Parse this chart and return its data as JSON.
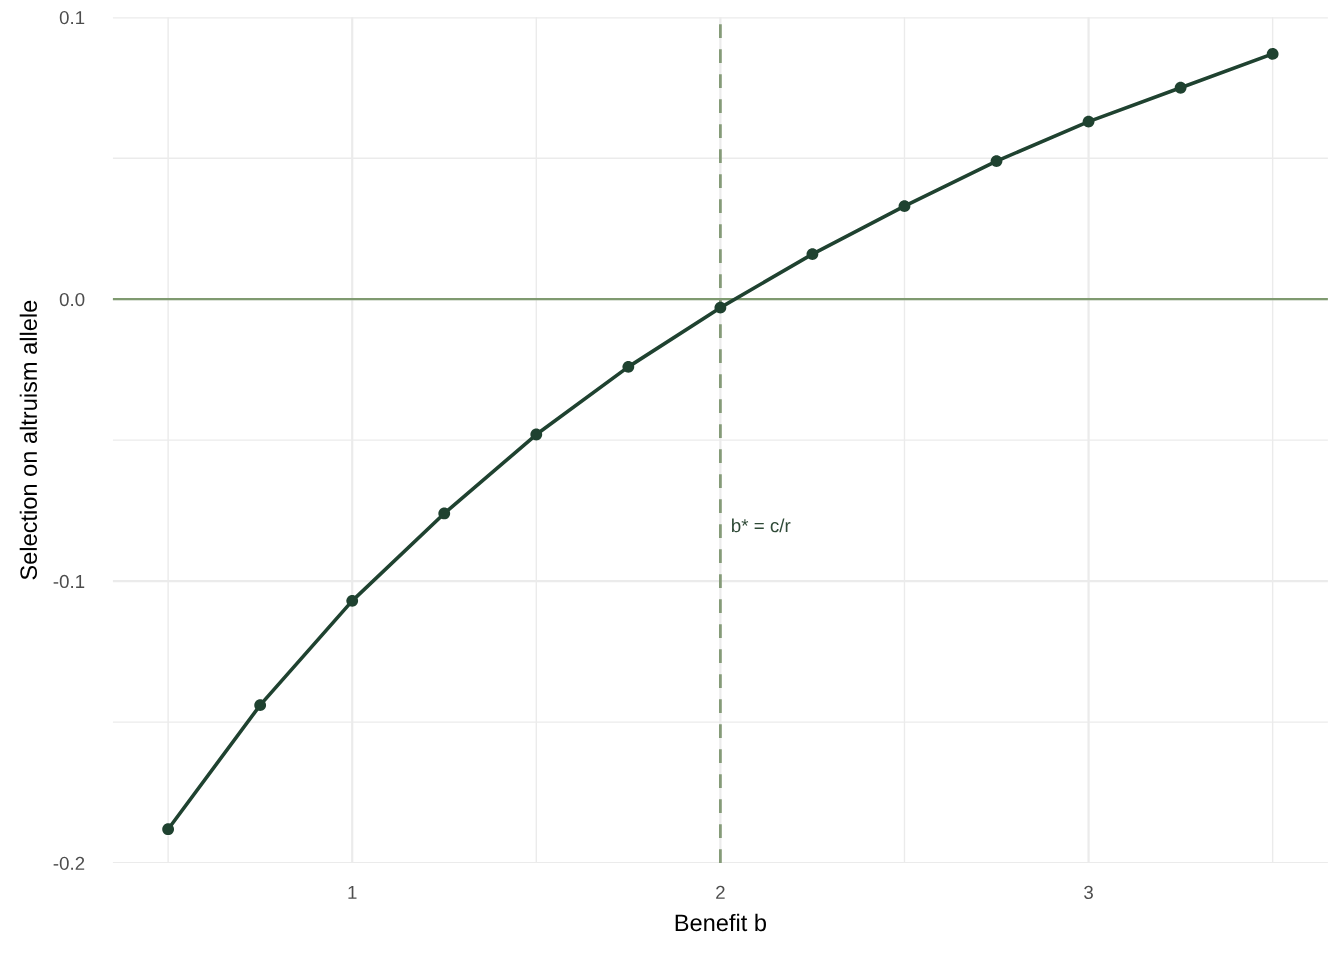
{
  "chart_data": {
    "type": "line",
    "xlabel": "Benefit b",
    "ylabel": "Selection on altruism allele",
    "x": [
      0.5,
      0.75,
      1.0,
      1.25,
      1.5,
      1.75,
      2.0,
      2.25,
      2.5,
      2.75,
      3.0,
      3.25,
      3.5
    ],
    "series": [
      {
        "color": "#1f4230",
        "values": [
          -0.188,
          -0.144,
          -0.107,
          -0.076,
          -0.048,
          -0.024,
          -0.003,
          0.016,
          0.033,
          0.049,
          0.063,
          0.075,
          0.087
        ]
      }
    ],
    "marker": "circle",
    "line_style": "solid",
    "xlim": [
      0.35,
      3.65
    ],
    "xticks": [
      {
        "value": 0.5,
        "label": null
      },
      1,
      {
        "value": 1.5,
        "label": null
      },
      2,
      {
        "value": 2.5,
        "label": null
      },
      3,
      {
        "value": 3.5,
        "label": null
      }
    ],
    "ylim": [
      -0.2,
      0.1
    ],
    "yticks": [
      {
        "value": -0.2,
        "label": "-0.2"
      },
      {
        "value": -0.15,
        "label": null
      },
      {
        "value": -0.1,
        "label": "-0.1"
      },
      {
        "value": -0.05,
        "label": null
      },
      {
        "value": 0.0,
        "label": "0.0"
      },
      {
        "value": 0.05,
        "label": null
      },
      {
        "value": 0.1,
        "label": "0.1"
      }
    ],
    "grid": true,
    "ref_lines": [
      {
        "axis": "y",
        "value": 0,
        "color": "#7f9a70",
        "line_style": "solid"
      },
      {
        "axis": "x",
        "value": 2,
        "color": "#859b78",
        "line_style": "dashed",
        "label": "b* = c/r"
      }
    ]
  }
}
